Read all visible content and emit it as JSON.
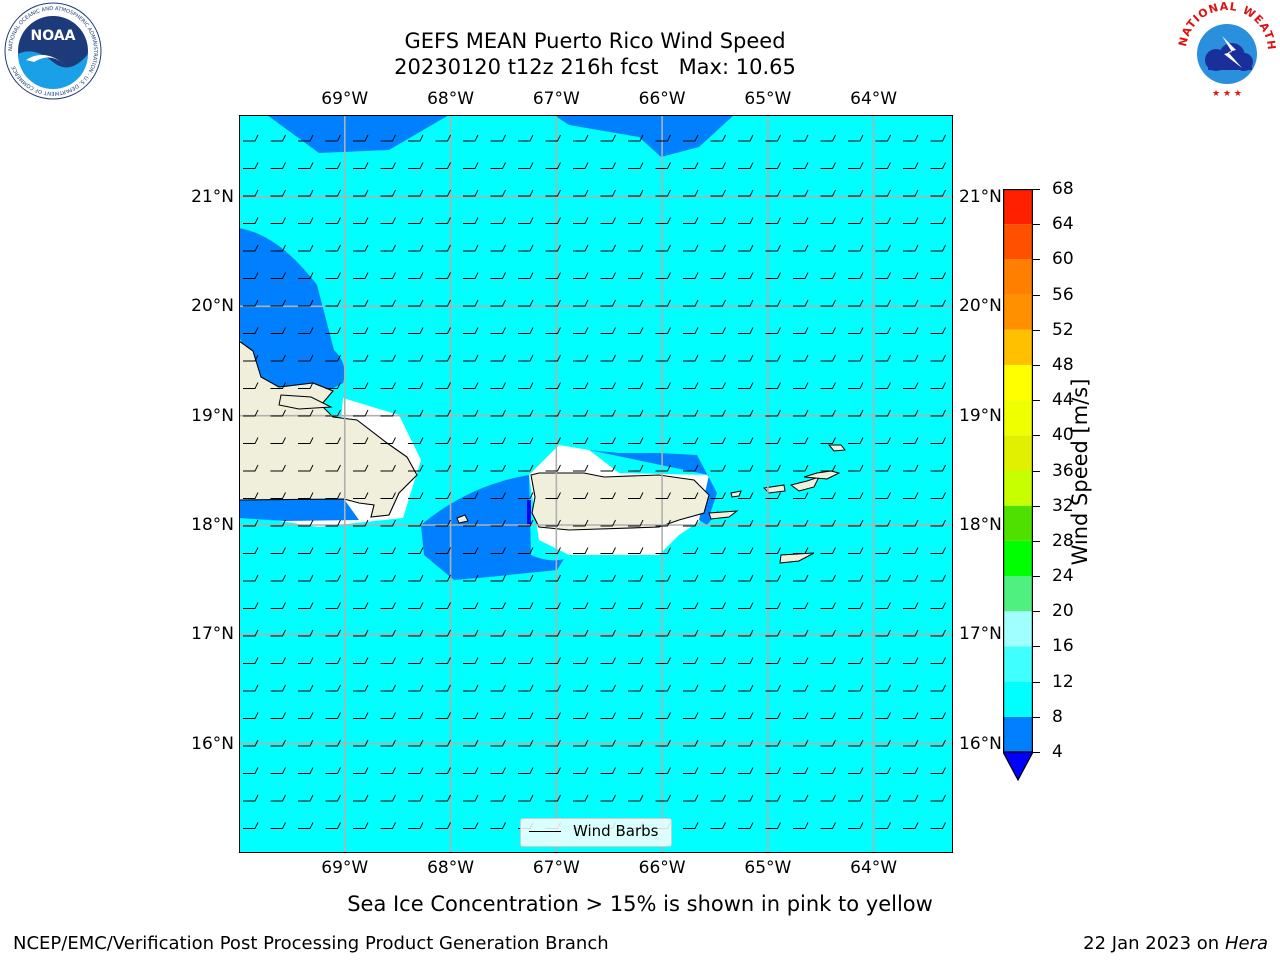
{
  "header": {
    "title_line1": "GEFS MEAN Puerto Rico Wind Speed",
    "title_line2": "20230120 t12z 216h fcst   Max: 10.65"
  },
  "logos": {
    "noaa_text": "NOAA",
    "noaa_ring_text": "NATIONAL OCEANIC AND ATMOSPHERIC ADMINISTRATION · U.S. DEPARTMENT OF COMMERCE",
    "nws_ring_text": "NATIONAL WEATHER SERVICE"
  },
  "map": {
    "lon_labels": [
      "69°W",
      "68°W",
      "67°W",
      "66°W",
      "65°W",
      "64°W"
    ],
    "lat_labels": [
      "21°N",
      "20°N",
      "19°N",
      "18°N",
      "17°N",
      "16°N"
    ],
    "lon_range": [
      -70.0,
      -63.25
    ],
    "lat_range": [
      15.0,
      21.75
    ],
    "gridlines": true,
    "ocean_color": "#00ffff",
    "wind_band_color": "#0080ff",
    "land_color": "#efefdc",
    "legend_label": "Wind Barbs"
  },
  "colorbar": {
    "label": "Wind Speed [m/s]",
    "ticks": [
      "68",
      "64",
      "60",
      "56",
      "52",
      "48",
      "44",
      "40",
      "36",
      "32",
      "28",
      "24",
      "20",
      "16",
      "12",
      "8",
      "4"
    ],
    "bins": [
      {
        "from": 4,
        "to": 8,
        "color": "#0080ff"
      },
      {
        "from": 8,
        "to": 12,
        "color": "#00ffff"
      },
      {
        "from": 12,
        "to": 16,
        "color": "#40ffff"
      },
      {
        "from": 16,
        "to": 20,
        "color": "#a0ffff"
      },
      {
        "from": 20,
        "to": 24,
        "color": "#50f080"
      },
      {
        "from": 24,
        "to": 28,
        "color": "#00ff00"
      },
      {
        "from": 28,
        "to": 32,
        "color": "#50e000"
      },
      {
        "from": 32,
        "to": 36,
        "color": "#c8ff00"
      },
      {
        "from": 36,
        "to": 40,
        "color": "#e0f000"
      },
      {
        "from": 40,
        "to": 44,
        "color": "#f0ff00"
      },
      {
        "from": 44,
        "to": 48,
        "color": "#ffff00"
      },
      {
        "from": 48,
        "to": 52,
        "color": "#ffc000"
      },
      {
        "from": 52,
        "to": 56,
        "color": "#ff9000"
      },
      {
        "from": 56,
        "to": 60,
        "color": "#ff8000"
      },
      {
        "from": 60,
        "to": 64,
        "color": "#ff5000"
      },
      {
        "from": 64,
        "to": 68,
        "color": "#ff2000"
      },
      {
        "from": 68,
        "to": 72,
        "color": "#ff0000"
      }
    ],
    "under_color": "#0000ff"
  },
  "footer": {
    "note": "Sea Ice Concentration > 15% is shown in pink to yellow",
    "branch": "NCEP/EMC/Verification Post Processing Product Generation Branch",
    "date_prefix": "22 Jan 2023 on ",
    "host": "Hera"
  }
}
